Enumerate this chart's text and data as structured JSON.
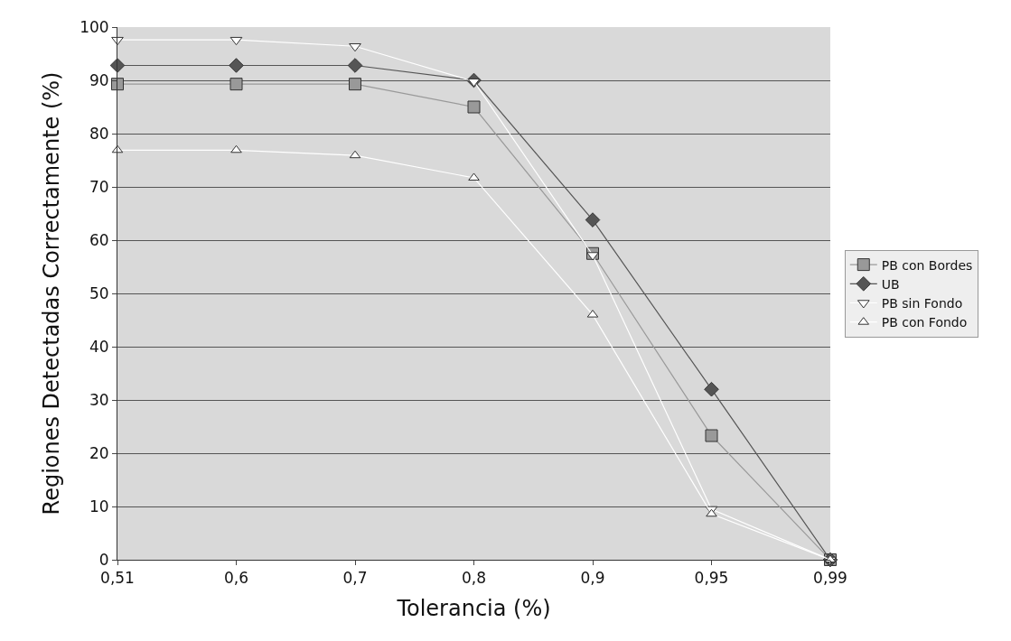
{
  "chart_data": {
    "type": "line",
    "xlabel": "Tolerancia (%)",
    "ylabel": "Regiones Detectadas Correctamente (%)",
    "categories": [
      "0,51",
      "0,6",
      "0,7",
      "0,8",
      "0,9",
      "0,95",
      "0,99"
    ],
    "series": [
      {
        "name": "PB con Bordes",
        "color": "#999999",
        "marker": "square",
        "values": [
          89.3,
          89.3,
          89.3,
          85,
          57.5,
          23.3,
          0
        ]
      },
      {
        "name": "UB",
        "color": "#555555",
        "marker": "diamond",
        "values": [
          92.8,
          92.8,
          92.8,
          90,
          63.8,
          32,
          0
        ]
      },
      {
        "name": "PB sin Fondo",
        "color": "#ffffff",
        "marker": "triangle-down",
        "values": [
          97.6,
          97.6,
          96.4,
          89.8,
          57.2,
          9.5,
          0
        ]
      },
      {
        "name": "PB con Fondo",
        "color": "#ffffff",
        "marker": "triangle",
        "values": [
          76.9,
          76.9,
          75.9,
          71.7,
          46,
          8.6,
          0
        ]
      }
    ],
    "ylim": [
      0,
      100
    ],
    "yticks": [
      0,
      10,
      20,
      30,
      40,
      50,
      60,
      70,
      80,
      90,
      100
    ],
    "grid": "y",
    "legend": "right"
  }
}
